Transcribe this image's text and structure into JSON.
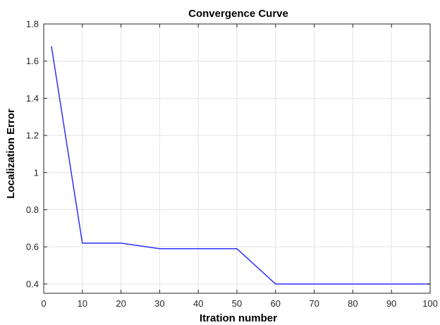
{
  "chart_data": {
    "type": "line",
    "title": "Convergence Curve",
    "xlabel": "Itration number",
    "ylabel": "Localization Error",
    "xlim": [
      0,
      100
    ],
    "ylim": [
      0.35,
      1.8
    ],
    "xticks": [
      0,
      10,
      20,
      30,
      40,
      50,
      60,
      70,
      80,
      90,
      100
    ],
    "yticks": [
      0.4,
      0.6,
      0.8,
      1,
      1.2,
      1.4,
      1.6,
      1.8
    ],
    "xtick_labels": [
      "0",
      "10",
      "20",
      "30",
      "40",
      "50",
      "60",
      "70",
      "80",
      "90",
      "100"
    ],
    "ytick_labels": [
      "0.4",
      "0.6",
      "0.8",
      "1",
      "1.2",
      "1.4",
      "1.6",
      "1.8"
    ],
    "grid": true,
    "series": [
      {
        "color": "#2f2fff",
        "x": [
          2,
          10,
          20,
          30,
          50,
          60,
          100
        ],
        "y": [
          1.68,
          0.62,
          0.62,
          0.59,
          0.59,
          0.4,
          0.4
        ]
      }
    ]
  }
}
